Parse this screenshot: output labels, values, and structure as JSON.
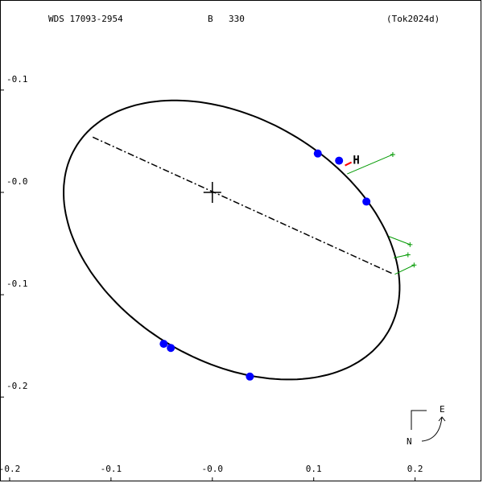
{
  "chart_data": {
    "type": "orbit",
    "title_left": "WDS 17093-2954",
    "title_component": "B",
    "title_number": "330",
    "title_right": "(Tok2024d)",
    "xlim": [
      -0.2095,
      0.267
    ],
    "ylim": [
      -0.284,
      0.188
    ],
    "xticks": [
      -0.2,
      -0.1,
      {
        "value": 0,
        "label": "-0.0"
      },
      0.1,
      0.2
    ],
    "yticks": [
      {
        "value": 0.1,
        "label": "-0.1"
      },
      {
        "value": 0,
        "label": "-0.0"
      },
      -0.1,
      -0.2
    ],
    "ellipse": {
      "cx": 0.019,
      "cy": -0.0465,
      "a": 0.1786,
      "b": 0.119,
      "angle": -30,
      "color": "#000000"
    },
    "node_line": {
      "x": [
        -0.118,
        0.179
      ],
      "y": [
        0.054,
        -0.08
      ]
    },
    "points": {
      "x": [
        0.104,
        0.125,
        0.152,
        -0.048,
        -0.041,
        0.037
      ],
      "y": [
        0.038,
        0.031,
        -0.009,
        -0.148,
        -0.152,
        -0.18
      ],
      "color": "#0000ff"
    },
    "speckle": {
      "label": "H",
      "x": 0.142,
      "y": 0.031,
      "color": "#ff0000"
    },
    "residuals": {
      "color": "#009900",
      "x1": [
        0.133,
        0.174,
        0.179,
        0.18
      ],
      "y1": [
        0.018,
        -0.043,
        -0.064,
        -0.08
      ],
      "x2": [
        0.178,
        0.195,
        0.193,
        0.199
      ],
      "y2": [
        0.037,
        -0.051,
        -0.061,
        -0.071
      ]
    },
    "compass": {
      "east": "E",
      "north": "N"
    }
  }
}
